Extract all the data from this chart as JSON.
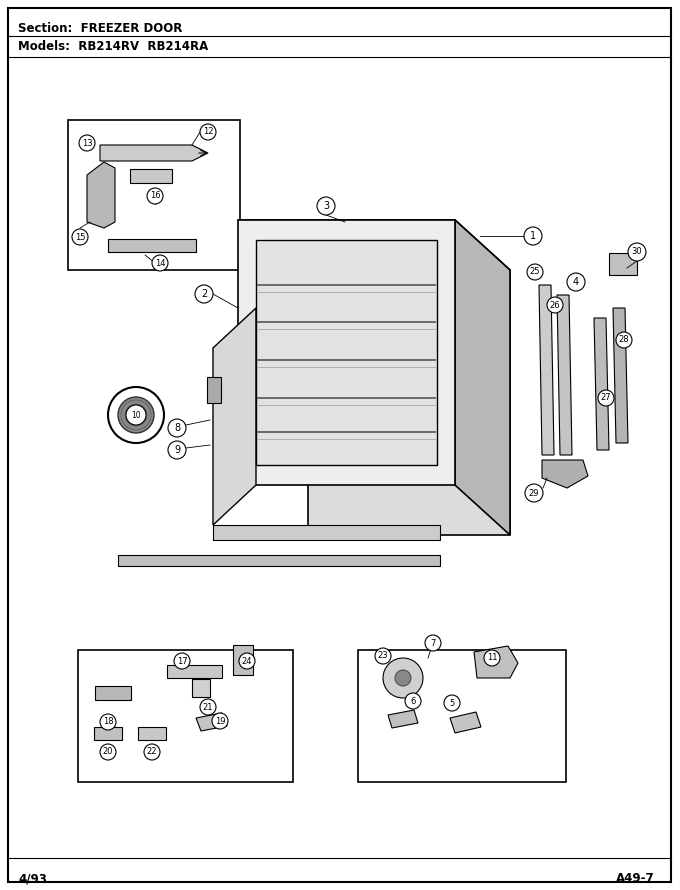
{
  "section_text": "Section:  FREEZER DOOR",
  "models_text": "Models:  RB214RV  RB214RA",
  "footer_left": "4/93",
  "footer_right": "A49-7",
  "bg_color": "#ffffff",
  "figsize": [
    6.8,
    8.9
  ],
  "dpi": 100
}
